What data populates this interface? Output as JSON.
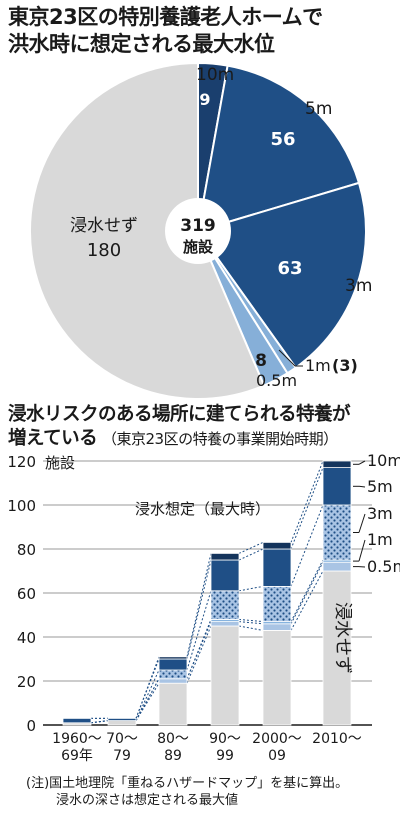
{
  "pie": {
    "title_line1": "東京23区の特別養護老人ホームで",
    "title_line2": "洪水時に想定される最大水位",
    "center_number": "319",
    "center_unit": "施設",
    "colors": {
      "10m": "#1a3f6e",
      "5m": "#1f4f86",
      "3m": "#1f4f86",
      "1m": "#86afd8",
      "0.5m": "#86afd8",
      "none": "#d9d9d9"
    },
    "labels": {
      "10m_depth": "10m",
      "10m_value": "9",
      "5m_depth": "5m",
      "5m_value": "56",
      "3m_depth": "3m",
      "3m_value": "63",
      "1m_depth": "1m",
      "1m_value": "(3)",
      "05m_depth": "0.5m",
      "05m_value": "8",
      "none_name": "浸水せず",
      "none_value": "180"
    }
  },
  "bar": {
    "title_line1": "浸水リスクのある場所に建てられる特養が",
    "title_line2_bold": "増えている",
    "title_line2_rest": "（東京23区の特養の事業開始時期）",
    "y_unit": "施設",
    "legend_title": "浸水想定（最大時）",
    "none_label": "浸水せず",
    "legend_items": [
      "10m",
      "5m",
      "3m",
      "1m",
      "0.5m"
    ],
    "y_ticks": [
      "0",
      "20",
      "40",
      "60",
      "80",
      "100",
      "120"
    ],
    "x_labels": [
      {
        "line1": "1960～",
        "line2": "69年"
      },
      {
        "line1": "70～",
        "line2": "79"
      },
      {
        "line1": "80～",
        "line2": "89"
      },
      {
        "line1": "90～",
        "line2": "99"
      },
      {
        "line1": "2000～",
        "line2": "09"
      },
      {
        "line1": "2010～",
        "line2": ""
      }
    ],
    "colors": {
      "10m": "#14345c",
      "5m": "#1f4f86",
      "3m": "#a9c4e4",
      "1m": "#86b3df",
      "0.5m": "#a9c4e4",
      "none": "#d9d9d9"
    }
  },
  "chart_data": [
    {
      "type": "pie",
      "title": "東京23区の特別養護老人ホームで洪水時に想定される最大水位",
      "total": 319,
      "unit": "施設",
      "slices": [
        {
          "label": "10m",
          "value": 9
        },
        {
          "label": "5m",
          "value": 56
        },
        {
          "label": "3m",
          "value": 63
        },
        {
          "label": "1m",
          "value": 3
        },
        {
          "label": "0.5m",
          "value": 8
        },
        {
          "label": "浸水せず",
          "value": 180
        }
      ]
    },
    {
      "type": "bar",
      "stacked": true,
      "title": "浸水リスクのある場所に建てられる特養が増えている（東京23区の特養の事業開始時期）",
      "ylabel": "施設",
      "ylim": [
        0,
        120
      ],
      "categories": [
        "1960～69年",
        "70～79",
        "80～89",
        "90～99",
        "2000～09",
        "2010～"
      ],
      "series": [
        {
          "name": "浸水せず",
          "values": [
            1,
            2,
            19,
            45,
            43,
            70
          ]
        },
        {
          "name": "0.5m",
          "values": [
            0,
            0,
            2,
            2,
            3,
            4
          ]
        },
        {
          "name": "1m",
          "values": [
            0,
            0,
            0,
            1,
            1,
            1
          ]
        },
        {
          "name": "3m",
          "values": [
            0,
            0,
            4,
            13,
            16,
            25
          ]
        },
        {
          "name": "5m",
          "values": [
            2,
            1,
            5,
            14,
            17,
            17
          ]
        },
        {
          "name": "10m",
          "values": [
            0,
            0,
            1,
            3,
            3,
            3
          ]
        }
      ]
    }
  ]
}
